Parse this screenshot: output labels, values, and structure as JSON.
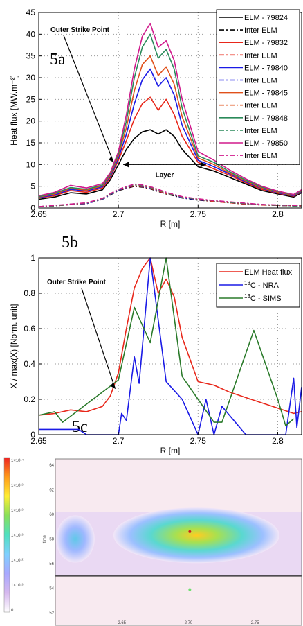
{
  "chart_data": [
    {
      "panel": "5a",
      "type": "line",
      "xlabel": "R [m]",
      "ylabel": "Heat flux [MW.m⁻²]",
      "xlim": [
        2.65,
        2.815
      ],
      "ylim": [
        0,
        45
      ],
      "xticks": [
        "2.65",
        "2.7",
        "2.75",
        "2.8"
      ],
      "yticks": [
        "0",
        "5",
        "10",
        "15",
        "20",
        "25",
        "30",
        "35",
        "40",
        "45"
      ],
      "grid": "dotted",
      "legend_position": "top-right",
      "annotations": {
        "strike": "Outer Strike Point",
        "layer": "Layer"
      },
      "x": [
        2.65,
        2.66,
        2.67,
        2.68,
        2.69,
        2.695,
        2.7,
        2.705,
        2.71,
        2.715,
        2.72,
        2.725,
        2.73,
        2.735,
        2.74,
        2.75,
        2.76,
        2.77,
        2.78,
        2.79,
        2.8,
        2.81,
        2.815
      ],
      "series": [
        {
          "name": "ELM - 79824",
          "color": "#000000",
          "dash": "solid",
          "values": [
            2.0,
            2.5,
            3.5,
            3.2,
            4.2,
            6.5,
            10.0,
            13.5,
            16.0,
            17.5,
            18.0,
            17.0,
            18.0,
            16.5,
            13.5,
            9.5,
            8.5,
            7.0,
            5.5,
            4.0,
            3.2,
            2.5,
            3.5
          ]
        },
        {
          "name": "Inter ELM",
          "color": "#000000",
          "dash": "dashdot",
          "values": [
            0.3,
            0.5,
            0.8,
            1.0,
            2.0,
            3.0,
            4.0,
            4.5,
            5.0,
            4.8,
            4.4,
            3.8,
            3.2,
            2.8,
            2.3,
            1.8,
            1.5,
            1.2,
            0.9,
            0.7,
            0.6,
            0.5,
            0.5
          ]
        },
        {
          "name": "ELM - 79832",
          "color": "#e8271a",
          "dash": "solid",
          "values": [
            2.3,
            2.8,
            4.0,
            3.6,
            4.6,
            7.0,
            11.0,
            15.5,
            20.5,
            24.0,
            25.5,
            22.5,
            25.0,
            21.5,
            16.5,
            10.5,
            9.0,
            7.5,
            5.8,
            4.3,
            3.4,
            2.7,
            3.7
          ]
        },
        {
          "name": "Inter ELM",
          "color": "#e8271a",
          "dash": "dashdot",
          "values": [
            0.3,
            0.5,
            0.8,
            1.0,
            2.0,
            3.1,
            4.1,
            4.6,
            5.1,
            4.9,
            4.5,
            3.9,
            3.3,
            2.9,
            2.4,
            1.9,
            1.5,
            1.2,
            0.9,
            0.7,
            0.6,
            0.5,
            0.5
          ]
        },
        {
          "name": "ELM - 79840",
          "color": "#1a1ae6",
          "dash": "solid",
          "values": [
            2.4,
            3.0,
            4.3,
            3.9,
            4.9,
            7.3,
            11.5,
            17.0,
            24.0,
            29.5,
            32.0,
            28.0,
            30.0,
            26.0,
            19.0,
            11.0,
            9.5,
            7.8,
            6.0,
            4.5,
            3.5,
            2.8,
            3.8
          ]
        },
        {
          "name": "Inter ELM",
          "color": "#1a1ae6",
          "dash": "dashdot",
          "values": [
            0.3,
            0.5,
            0.8,
            1.0,
            2.0,
            3.1,
            4.1,
            4.7,
            5.2,
            5.0,
            4.6,
            4.0,
            3.4,
            2.9,
            2.4,
            1.9,
            1.6,
            1.3,
            1.0,
            0.8,
            0.6,
            0.5,
            0.5
          ]
        },
        {
          "name": "ELM - 79845",
          "color": "#e0501a",
          "dash": "solid",
          "values": [
            2.5,
            3.2,
            4.5,
            4.1,
            5.1,
            7.6,
            12.0,
            18.5,
            27.0,
            33.0,
            35.0,
            30.5,
            32.5,
            28.5,
            21.0,
            11.5,
            10.0,
            8.0,
            6.2,
            4.6,
            3.6,
            2.9,
            3.9
          ]
        },
        {
          "name": "Inter ELM",
          "color": "#e0501a",
          "dash": "dashdot",
          "values": [
            0.3,
            0.5,
            0.8,
            1.1,
            2.1,
            3.2,
            4.2,
            4.8,
            5.3,
            5.1,
            4.7,
            4.1,
            3.4,
            3.0,
            2.5,
            2.0,
            1.6,
            1.3,
            1.0,
            0.8,
            0.6,
            0.5,
            0.5
          ]
        },
        {
          "name": "ELM - 79848",
          "color": "#2a8a5a",
          "dash": "solid",
          "values": [
            2.6,
            3.4,
            4.7,
            4.3,
            5.3,
            7.9,
            12.5,
            20.0,
            30.0,
            37.0,
            40.0,
            34.5,
            36.5,
            32.0,
            23.0,
            12.0,
            10.5,
            8.3,
            6.4,
            4.8,
            3.8,
            3.0,
            4.0
          ]
        },
        {
          "name": "Inter ELM",
          "color": "#2a8a5a",
          "dash": "dashdot",
          "values": [
            0.3,
            0.5,
            0.9,
            1.1,
            2.1,
            3.2,
            4.2,
            4.8,
            5.4,
            5.2,
            4.8,
            4.2,
            3.5,
            3.0,
            2.5,
            2.0,
            1.7,
            1.3,
            1.0,
            0.8,
            0.6,
            0.5,
            0.5
          ]
        },
        {
          "name": "ELM - 79850",
          "color": "#d01a8c",
          "dash": "solid",
          "values": [
            2.8,
            3.6,
            5.2,
            4.6,
            5.6,
            8.2,
            13.0,
            21.5,
            32.0,
            39.5,
            42.5,
            37.0,
            38.5,
            34.0,
            25.0,
            13.0,
            11.0,
            8.7,
            6.7,
            5.0,
            3.9,
            3.1,
            4.2
          ]
        },
        {
          "name": "Inter ELM",
          "color": "#d01a8c",
          "dash": "dashdot",
          "values": [
            0.3,
            0.6,
            0.9,
            1.2,
            2.2,
            3.3,
            4.3,
            4.9,
            5.5,
            5.3,
            4.9,
            4.3,
            3.6,
            3.1,
            2.6,
            2.1,
            1.7,
            1.4,
            1.1,
            0.8,
            0.7,
            0.6,
            0.6
          ]
        }
      ]
    },
    {
      "panel": "5b",
      "type": "line",
      "xlabel": "R [m]",
      "ylabel": "X / max(X) [Norm. unit]",
      "xlim": [
        2.65,
        2.815
      ],
      "ylim": [
        0,
        1
      ],
      "xticks": [
        "2.65",
        "2.7",
        "2.75",
        "2.8"
      ],
      "yticks": [
        "0",
        "0.2",
        "0.4",
        "0.6",
        "0.8",
        "1"
      ],
      "grid": "dotted",
      "legend_position": "top-right",
      "annotations": {
        "strike": "Outer Strike Point"
      },
      "series": [
        {
          "name": "ELM Heat flux",
          "name_sup": "",
          "color": "#e8271a",
          "x": [
            2.65,
            2.66,
            2.67,
            2.68,
            2.69,
            2.695,
            2.7,
            2.705,
            2.71,
            2.715,
            2.72,
            2.725,
            2.73,
            2.735,
            2.74,
            2.75,
            2.76,
            2.77,
            2.78,
            2.79,
            2.8,
            2.81,
            2.815
          ],
          "values": [
            0.11,
            0.12,
            0.14,
            0.13,
            0.16,
            0.22,
            0.35,
            0.6,
            0.83,
            0.94,
            1.0,
            0.8,
            0.88,
            0.78,
            0.55,
            0.3,
            0.28,
            0.24,
            0.21,
            0.18,
            0.15,
            0.12,
            0.13
          ]
        },
        {
          "name": " - NRA",
          "name_sup": "13",
          "name_pre": "C",
          "color": "#1a1ae6",
          "x": [
            2.65,
            2.675,
            2.68,
            2.7,
            2.702,
            2.705,
            2.71,
            2.713,
            2.72,
            2.73,
            2.74,
            2.75,
            2.755,
            2.76,
            2.765,
            2.78,
            2.8,
            2.805,
            2.81,
            2.812,
            2.815
          ],
          "values": [
            0.03,
            0.03,
            0.0,
            0.0,
            0.12,
            0.08,
            0.44,
            0.29,
            1.0,
            0.3,
            0.2,
            0.0,
            0.2,
            0.0,
            0.16,
            0.0,
            0.0,
            0.0,
            0.32,
            0.04,
            0.27
          ]
        },
        {
          "name": " - SIMS",
          "name_sup": "13",
          "name_pre": "C",
          "color": "#2a7a2a",
          "x": [
            2.65,
            2.66,
            2.665,
            2.7,
            2.71,
            2.72,
            2.73,
            2.74,
            2.75,
            2.76,
            2.765,
            2.785,
            2.8,
            2.805,
            2.81
          ],
          "values": [
            0.11,
            0.13,
            0.07,
            0.31,
            0.72,
            0.52,
            1.0,
            0.33,
            0.2,
            0.07,
            0.07,
            0.59,
            0.2,
            0.05,
            0.09
          ]
        }
      ]
    },
    {
      "panel": "5c",
      "type": "heatmap",
      "xticks": [
        "2.65",
        "2.70",
        "2.75"
      ],
      "xlim": [
        2.6,
        2.785
      ],
      "yticks": [
        "52",
        "54",
        "56",
        "58",
        "60",
        "62",
        "64"
      ],
      "ylim": [
        51,
        64.5
      ],
      "ylabel": "time",
      "colorbar_ticks": [
        "1×10¹⁴",
        "1×10¹³",
        "1×10¹³",
        "1×10¹³",
        "1×10¹²",
        "1×10¹³",
        "0"
      ],
      "colormap": [
        "#ffffff",
        "#d6b8ee",
        "#a8a8ff",
        "#7fd0ff",
        "#4fe0c0",
        "#88e058",
        "#ffee33",
        "#ff9a1a",
        "#ee2222"
      ]
    }
  ]
}
